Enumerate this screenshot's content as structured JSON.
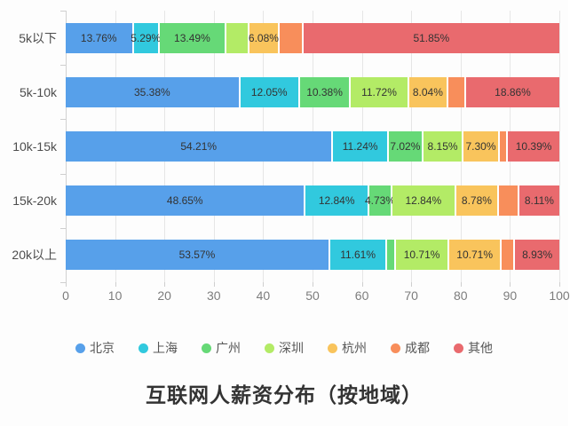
{
  "chart_data": {
    "type": "bar",
    "variant": "horizontal-stacked",
    "title": "互联网人薪资分布（按地域）",
    "categories": [
      "5k以下",
      "5k-10k",
      "10k-15k",
      "15k-20k",
      "20k以上"
    ],
    "series": [
      {
        "name": "北京",
        "color": "#57A0EA",
        "values": [
          13.76,
          35.38,
          54.21,
          48.65,
          53.57
        ],
        "labels": [
          "13.76%",
          "35.38%",
          "54.21%",
          "48.65%",
          "53.57%"
        ]
      },
      {
        "name": "上海",
        "color": "#31C9DE",
        "values": [
          5.29,
          12.05,
          11.24,
          12.84,
          11.61
        ],
        "labels": [
          "5.29%",
          "12.05%",
          "11.24%",
          "12.84%",
          "11.61%"
        ]
      },
      {
        "name": "广州",
        "color": "#66D977",
        "values": [
          13.49,
          10.38,
          7.02,
          4.73,
          1.79
        ],
        "labels": [
          "13.49%",
          "10.38%",
          "7.02%",
          "4.73%",
          null
        ]
      },
      {
        "name": "深圳",
        "color": "#B3EB66",
        "values": [
          4.7,
          11.72,
          8.15,
          12.84,
          10.71
        ],
        "labels": [
          null,
          "11.72%",
          "8.15%",
          "12.84%",
          "10.71%"
        ]
      },
      {
        "name": "杭州",
        "color": "#F9C45C",
        "values": [
          6.08,
          8.04,
          7.3,
          8.78,
          10.71
        ],
        "labels": [
          "6.08%",
          "8.04%",
          "7.30%",
          "8.78%",
          "10.71%"
        ]
      },
      {
        "name": "成都",
        "color": "#F88E5B",
        "values": [
          4.83,
          3.57,
          1.69,
          4.05,
          2.68
        ],
        "labels": [
          null,
          null,
          null,
          null,
          null
        ]
      },
      {
        "name": "其他",
        "color": "#E96A6E",
        "values": [
          51.85,
          18.86,
          10.39,
          8.11,
          8.93
        ],
        "labels": [
          "51.85%",
          "18.86%",
          "10.39%",
          "8.11%",
          "8.93%"
        ]
      }
    ],
    "x_axis": {
      "min": 0,
      "max": 100,
      "ticks": [
        0,
        10,
        20,
        30,
        40,
        50,
        60,
        70,
        80,
        90,
        100
      ]
    },
    "legend_position": "bottom",
    "grid": "vertical-lines"
  }
}
